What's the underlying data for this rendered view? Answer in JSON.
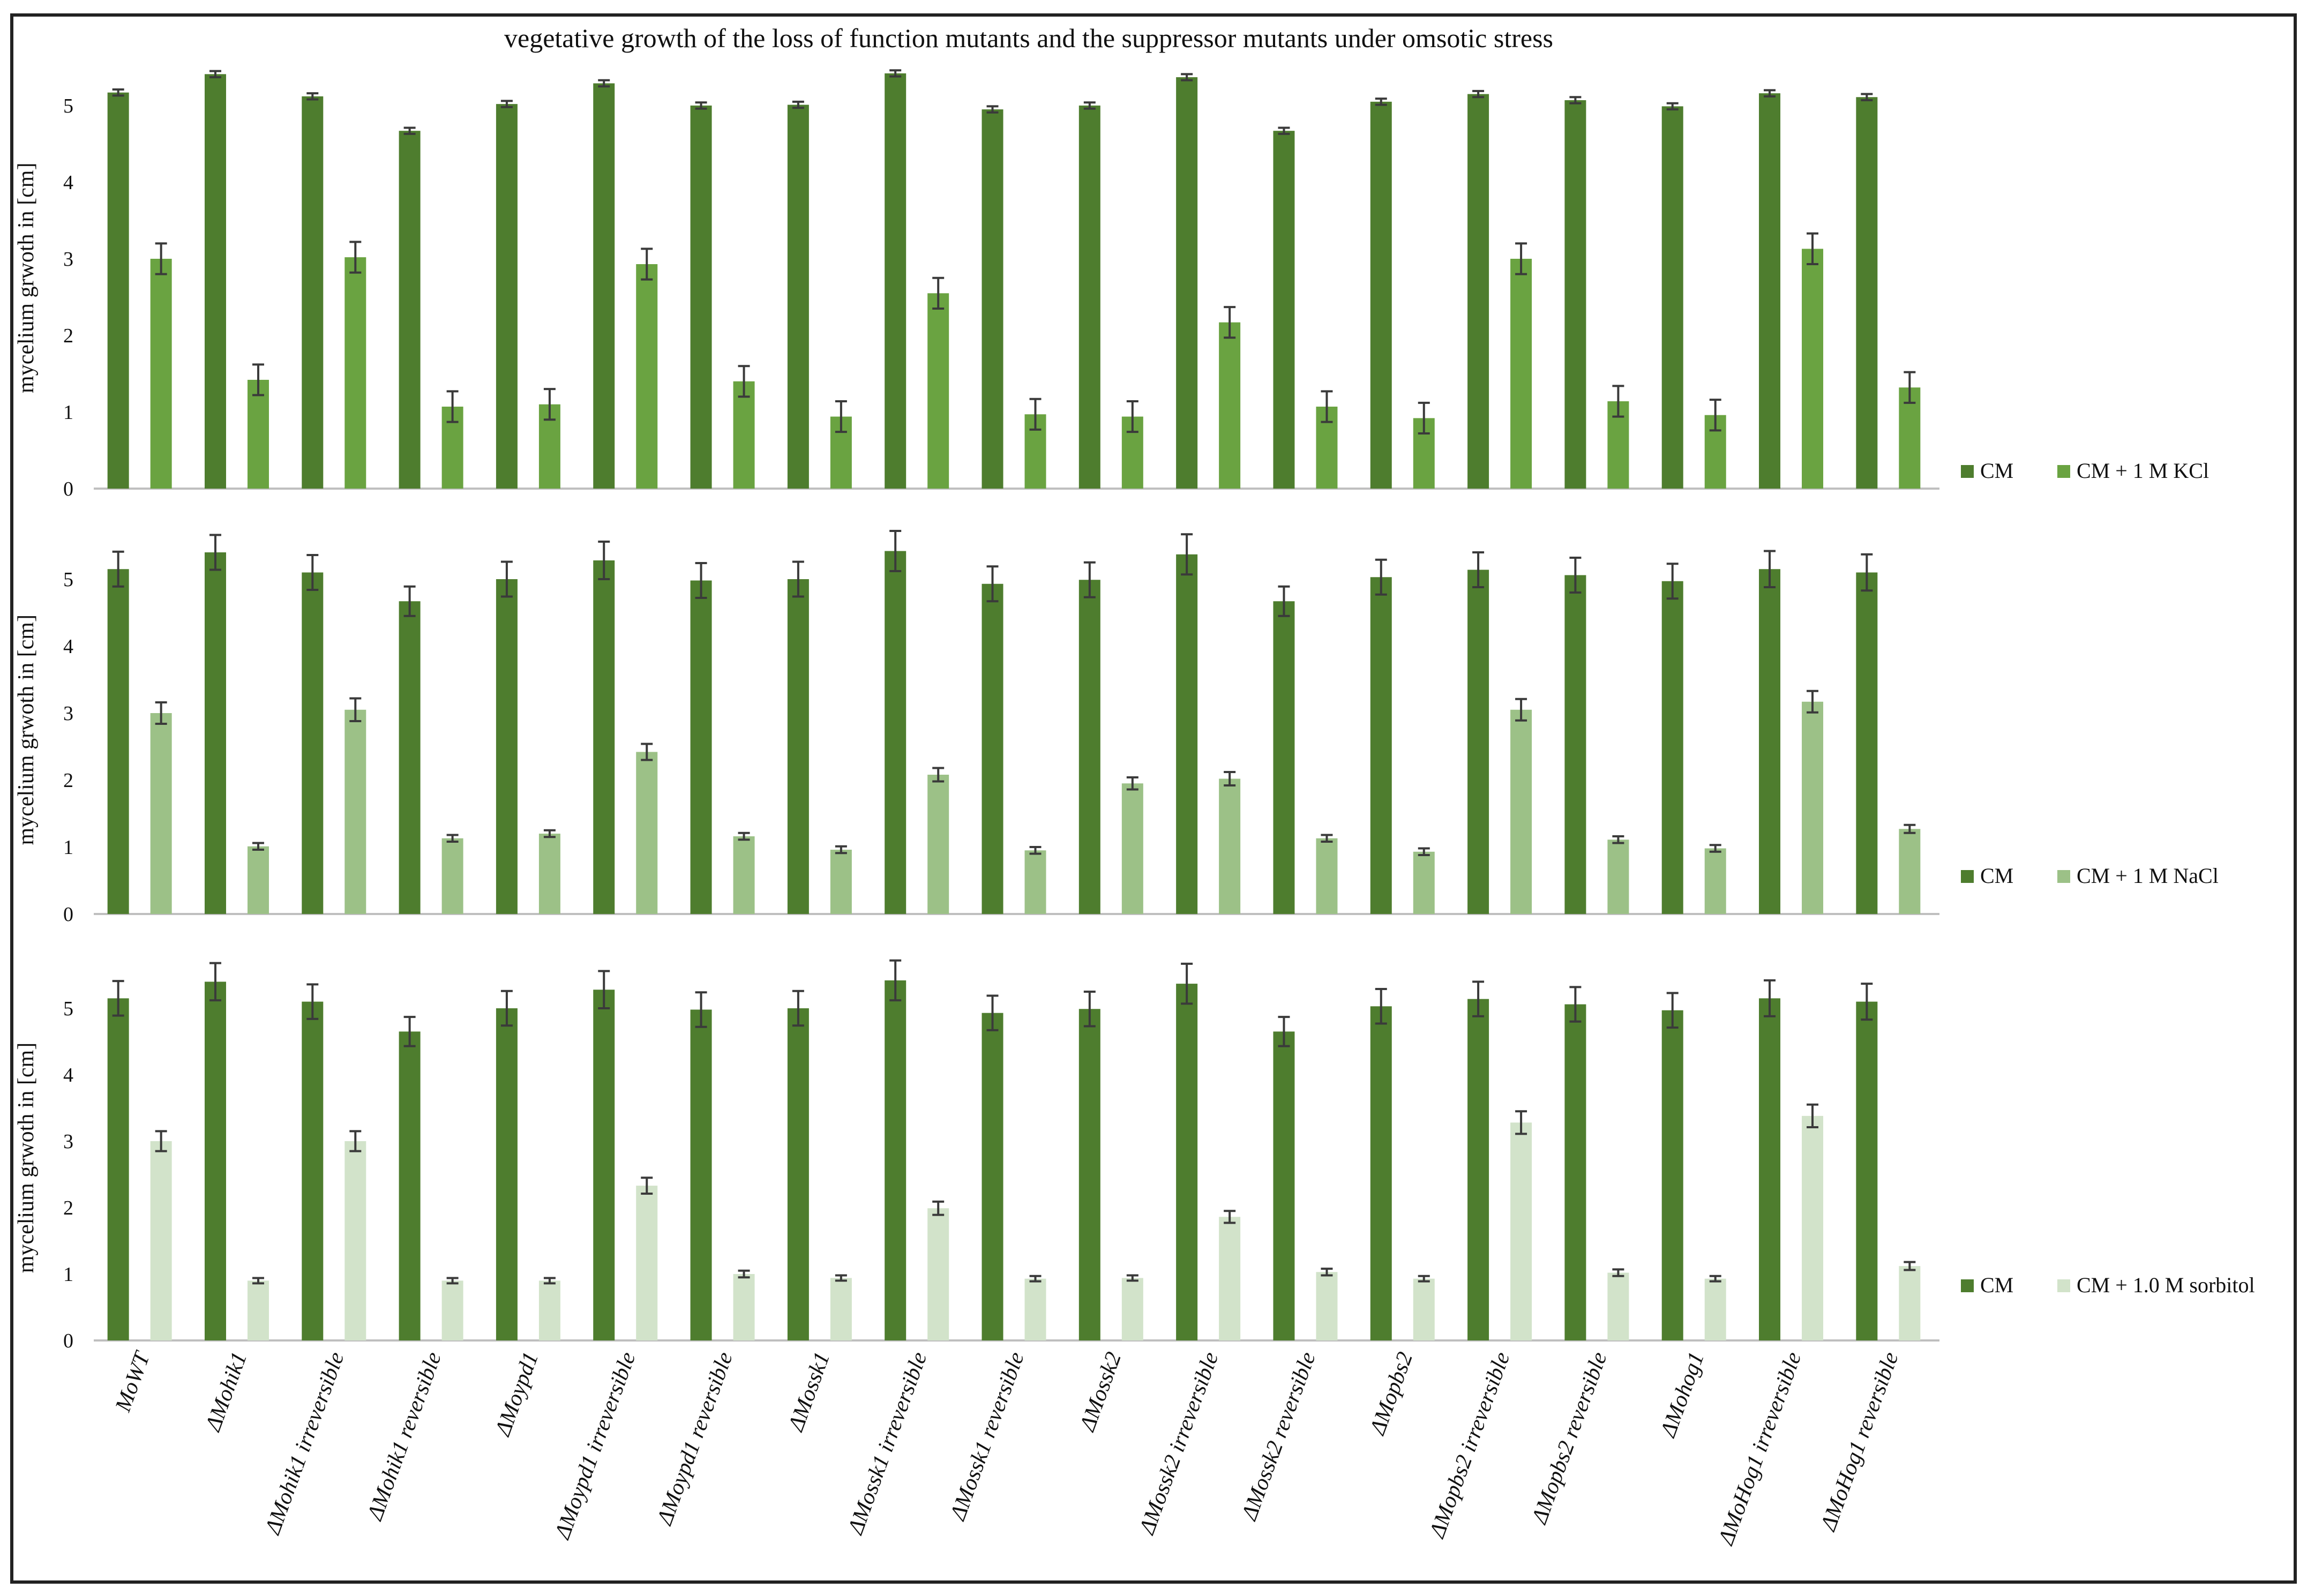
{
  "figure_title": "vegetative growth of the loss of function mutants and the suppressor mutants under omsotic stress",
  "colors": {
    "cm": "#4e7d2e",
    "kcl": "#6aa341",
    "nacl": "#9cc187",
    "sorbitol": "#d2e3ca",
    "error_bar": "#3a3a3a",
    "axis": "#bfbfbf"
  },
  "chart_data": [
    {
      "type": "bar",
      "title": "vegetative growth of the loss of function mutants and the suppressor mutants under omsotic stress",
      "ylabel": "mycelium grwoth in [cm]",
      "ylim": [
        0,
        5.5
      ],
      "yticks": [
        0,
        1,
        2,
        3,
        4,
        5
      ],
      "legend_position": "right",
      "categories": [
        "MoWT",
        "ΔMohik1",
        "ΔMohik1 irreversible",
        "ΔMohik1 reversible",
        "ΔMoypd1",
        "ΔMoypd1 irreversible",
        "ΔMoypd1 reversible",
        "ΔMossk1",
        "ΔMossk1 irreversible",
        "ΔMossk1 reversible",
        "ΔMossk2",
        "ΔMossk2 irreversible",
        "ΔMossk2 reversible",
        "ΔMopbs2",
        "ΔMopbs2 irreversible",
        "ΔMopbs2 reversible",
        "ΔMohog1",
        "ΔMoHog1 irreversible",
        "ΔMoHog1 reversible"
      ],
      "series": [
        {
          "name": "CM",
          "color": "#4e7d2e",
          "values": [
            5.17,
            5.41,
            5.12,
            4.67,
            5.02,
            5.29,
            5.0,
            5.01,
            5.42,
            4.95,
            5.0,
            5.37,
            4.67,
            5.05,
            5.15,
            5.07,
            4.99,
            5.16,
            5.11
          ],
          "errors": [
            0.04,
            0.04,
            0.04,
            0.04,
            0.04,
            0.04,
            0.04,
            0.04,
            0.04,
            0.04,
            0.04,
            0.04,
            0.04,
            0.04,
            0.04,
            0.04,
            0.04,
            0.04,
            0.04
          ]
        },
        {
          "name": "CM + 1 M KCl",
          "color": "#6aa341",
          "values": [
            3.0,
            1.42,
            3.02,
            1.07,
            1.1,
            2.93,
            1.4,
            0.94,
            2.55,
            0.97,
            0.94,
            2.17,
            1.07,
            0.92,
            3.0,
            1.14,
            0.96,
            3.13,
            1.32
          ],
          "errors": [
            0.2,
            0.2,
            0.2,
            0.2,
            0.2,
            0.2,
            0.2,
            0.2,
            0.2,
            0.2,
            0.2,
            0.2,
            0.2,
            0.2,
            0.2,
            0.2,
            0.2,
            0.2,
            0.2
          ]
        }
      ]
    },
    {
      "type": "bar",
      "ylabel": "mycelium grwoth in [cm]",
      "ylim": [
        0,
        5.5
      ],
      "yticks": [
        0,
        1,
        2,
        3,
        4,
        5
      ],
      "legend_position": "right",
      "categories": [
        "MoWT",
        "ΔMohik1",
        "ΔMohik1 irreversible",
        "ΔMohik1 reversible",
        "ΔMoypd1",
        "ΔMoypd1 irreversible",
        "ΔMoypd1 reversible",
        "ΔMossk1",
        "ΔMossk1 irreversible",
        "ΔMossk1 reversible",
        "ΔMossk2",
        "ΔMossk2 irreversible",
        "ΔMossk2 reversible",
        "ΔMopbs2",
        "ΔMopbs2 irreversible",
        "ΔMopbs2 reversible",
        "ΔMohog1",
        "ΔMoHog1 irreversible",
        "ΔMoHog1 reversible"
      ],
      "series": [
        {
          "name": "CM",
          "color": "#4e7d2e",
          "values": [
            5.15,
            5.4,
            5.1,
            4.67,
            5.0,
            5.28,
            4.98,
            5.0,
            5.42,
            4.93,
            4.99,
            5.37,
            4.67,
            5.03,
            5.14,
            5.06,
            4.97,
            5.15,
            5.1
          ],
          "errors": [
            0.26,
            0.26,
            0.26,
            0.22,
            0.26,
            0.28,
            0.26,
            0.26,
            0.3,
            0.26,
            0.26,
            0.3,
            0.22,
            0.26,
            0.26,
            0.26,
            0.26,
            0.27,
            0.27
          ]
        },
        {
          "name": "CM + 1 M NaCl",
          "color": "#9cc187",
          "values": [
            3.0,
            1.01,
            3.05,
            1.13,
            1.2,
            2.42,
            1.16,
            0.96,
            2.08,
            0.95,
            1.95,
            2.02,
            1.13,
            0.93,
            3.05,
            1.11,
            0.98,
            3.17,
            1.27
          ],
          "errors": [
            0.16,
            0.05,
            0.17,
            0.05,
            0.05,
            0.12,
            0.05,
            0.05,
            0.1,
            0.05,
            0.09,
            0.1,
            0.05,
            0.05,
            0.16,
            0.05,
            0.05,
            0.16,
            0.06
          ]
        }
      ]
    },
    {
      "type": "bar",
      "ylabel": "mycelium grwoth in [cm]",
      "ylim": [
        0,
        5.5
      ],
      "yticks": [
        0,
        1,
        2,
        3,
        4,
        5
      ],
      "legend_position": "right",
      "categories": [
        "MoWT",
        "ΔMohik1",
        "ΔMohik1 irreversible",
        "ΔMohik1 reversible",
        "ΔMoypd1",
        "ΔMoypd1 irreversible",
        "ΔMoypd1 reversible",
        "ΔMossk1",
        "ΔMossk1 irreversible",
        "ΔMossk1 reversible",
        "ΔMossk2",
        "ΔMossk2 irreversible",
        "ΔMossk2 reversible",
        "ΔMopbs2",
        "ΔMopbs2 irreversible",
        "ΔMopbs2 reversible",
        "ΔMohog1",
        "ΔMoHog1 irreversible",
        "ΔMoHog1 reversible"
      ],
      "series": [
        {
          "name": "CM",
          "color": "#4e7d2e",
          "values": [
            5.15,
            5.4,
            5.1,
            4.65,
            5.0,
            5.28,
            4.98,
            5.0,
            5.42,
            4.93,
            4.99,
            5.37,
            4.65,
            5.03,
            5.14,
            5.06,
            4.97,
            5.15,
            5.1
          ],
          "errors": [
            0.26,
            0.28,
            0.26,
            0.22,
            0.26,
            0.28,
            0.26,
            0.26,
            0.3,
            0.26,
            0.26,
            0.3,
            0.22,
            0.26,
            0.26,
            0.26,
            0.26,
            0.27,
            0.27
          ]
        },
        {
          "name": "CM + 1.0 M sorbitol",
          "color": "#d2e3ca",
          "values": [
            3.0,
            0.9,
            3.0,
            0.9,
            0.9,
            2.33,
            1.0,
            0.94,
            1.99,
            0.93,
            0.94,
            1.86,
            1.03,
            0.93,
            3.28,
            1.02,
            0.93,
            3.38,
            1.12
          ],
          "errors": [
            0.15,
            0.04,
            0.15,
            0.04,
            0.04,
            0.12,
            0.05,
            0.04,
            0.1,
            0.04,
            0.04,
            0.09,
            0.05,
            0.04,
            0.17,
            0.05,
            0.04,
            0.17,
            0.06
          ]
        }
      ]
    }
  ]
}
